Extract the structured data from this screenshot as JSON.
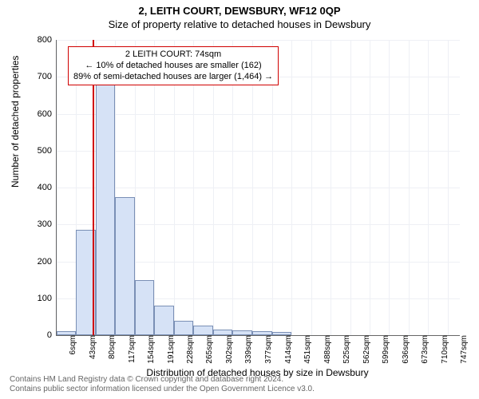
{
  "title_main": "2, LEITH COURT, DEWSBURY, WF12 0QP",
  "title_sub": "Size of property relative to detached houses in Dewsbury",
  "ylabel": "Number of detached properties",
  "xlabel": "Distribution of detached houses by size in Dewsbury",
  "chart": {
    "type": "histogram",
    "ylim": [
      0,
      800
    ],
    "ytick_step": 100,
    "xmin": 6,
    "xmax": 770,
    "xtick_start": 6,
    "xtick_step": 37,
    "xtick_suffix": "sqm",
    "xtick_labels": [
      6,
      43,
      80,
      117,
      154,
      191,
      228,
      265,
      302,
      339,
      377,
      414,
      451,
      488,
      525,
      562,
      599,
      636,
      673,
      710,
      747
    ],
    "bars": [
      {
        "x": 6,
        "v": 10
      },
      {
        "x": 43,
        "v": 285
      },
      {
        "x": 80,
        "v": 700
      },
      {
        "x": 117,
        "v": 375
      },
      {
        "x": 154,
        "v": 150
      },
      {
        "x": 191,
        "v": 80
      },
      {
        "x": 228,
        "v": 40
      },
      {
        "x": 265,
        "v": 25
      },
      {
        "x": 302,
        "v": 15
      },
      {
        "x": 339,
        "v": 12
      },
      {
        "x": 377,
        "v": 10
      },
      {
        "x": 414,
        "v": 8
      },
      {
        "x": 451,
        "v": 0
      },
      {
        "x": 488,
        "v": 0
      },
      {
        "x": 525,
        "v": 0
      },
      {
        "x": 562,
        "v": 0
      },
      {
        "x": 599,
        "v": 0
      },
      {
        "x": 636,
        "v": 0
      },
      {
        "x": 673,
        "v": 0
      },
      {
        "x": 710,
        "v": 0
      },
      {
        "x": 747,
        "v": 0
      }
    ],
    "bar_fill": "#d6e2f6",
    "bar_stroke": "#7a8fb5",
    "grid_color": "#eef0f5",
    "marker_x": 74,
    "marker_color": "#d00000"
  },
  "annotation": {
    "line1": "2 LEITH COURT: 74sqm",
    "line2": "← 10% of detached houses are smaller (162)",
    "line3": "89% of semi-detached houses are larger (1,464) →"
  },
  "footer": {
    "line1": "Contains HM Land Registry data © Crown copyright and database right 2024.",
    "line2": "Contains public sector information licensed under the Open Government Licence v3.0."
  }
}
